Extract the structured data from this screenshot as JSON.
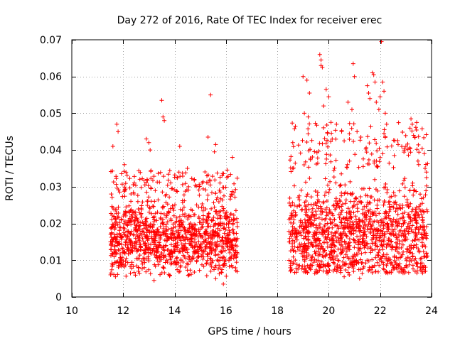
{
  "chart_data": {
    "type": "scatter",
    "title": "Day 272 of 2016, Rate Of TEC Index for receiver erec",
    "xlabel": "GPS time / hours",
    "ylabel": "ROTI / TECUs",
    "xlim": [
      10,
      24
    ],
    "ylim": [
      0,
      0.07
    ],
    "xticks": [
      10,
      12,
      14,
      16,
      18,
      20,
      22,
      24
    ],
    "yticks": [
      0,
      0.01,
      0.02,
      0.03,
      0.04,
      0.05,
      0.06,
      0.07
    ],
    "xtick_labels": [
      "10",
      "12",
      "14",
      "16",
      "18",
      "20",
      "22",
      "24"
    ],
    "ytick_labels": [
      "0",
      "0.01",
      "0.02",
      "0.03",
      "0.04",
      "0.05",
      "0.06",
      "0.07"
    ],
    "grid": true,
    "marker": "+",
    "color": "#ff0000",
    "series": [
      {
        "name": "erec",
        "segments": [
          {
            "x_start": 11.5,
            "x_end": 16.45,
            "typical_min": 0.007,
            "typical_max": 0.027,
            "median": 0.016
          },
          {
            "x_start": 18.45,
            "x_end": 23.85,
            "typical_min": 0.008,
            "typical_max": 0.035,
            "median": 0.017
          }
        ],
        "outliers": [
          {
            "x": 11.75,
            "y": 0.047
          },
          {
            "x": 11.8,
            "y": 0.045
          },
          {
            "x": 11.6,
            "y": 0.041
          },
          {
            "x": 11.7,
            "y": 0.0055
          },
          {
            "x": 12.05,
            "y": 0.036
          },
          {
            "x": 12.9,
            "y": 0.043
          },
          {
            "x": 13.0,
            "y": 0.042
          },
          {
            "x": 13.05,
            "y": 0.04
          },
          {
            "x": 13.5,
            "y": 0.0535
          },
          {
            "x": 13.55,
            "y": 0.049
          },
          {
            "x": 13.6,
            "y": 0.048
          },
          {
            "x": 13.2,
            "y": 0.0045
          },
          {
            "x": 14.2,
            "y": 0.041
          },
          {
            "x": 14.5,
            "y": 0.035
          },
          {
            "x": 15.4,
            "y": 0.055
          },
          {
            "x": 15.3,
            "y": 0.0435
          },
          {
            "x": 15.6,
            "y": 0.0415
          },
          {
            "x": 15.55,
            "y": 0.0395
          },
          {
            "x": 15.85,
            "y": 0.033
          },
          {
            "x": 16.25,
            "y": 0.038
          },
          {
            "x": 15.9,
            "y": 0.0035
          },
          {
            "x": 15.6,
            "y": 0.005
          },
          {
            "x": 18.6,
            "y": 0.035
          },
          {
            "x": 18.55,
            "y": 0.0075
          },
          {
            "x": 19.0,
            "y": 0.06
          },
          {
            "x": 19.15,
            "y": 0.059
          },
          {
            "x": 19.25,
            "y": 0.0555
          },
          {
            "x": 19.05,
            "y": 0.05
          },
          {
            "x": 19.2,
            "y": 0.049
          },
          {
            "x": 19.65,
            "y": 0.066
          },
          {
            "x": 19.7,
            "y": 0.0645
          },
          {
            "x": 19.75,
            "y": 0.0625
          },
          {
            "x": 19.7,
            "y": 0.063
          },
          {
            "x": 19.8,
            "y": 0.052
          },
          {
            "x": 19.9,
            "y": 0.0565
          },
          {
            "x": 20.0,
            "y": 0.0545
          },
          {
            "x": 19.95,
            "y": 0.0445
          },
          {
            "x": 20.3,
            "y": 0.047
          },
          {
            "x": 20.5,
            "y": 0.045
          },
          {
            "x": 20.6,
            "y": 0.0425
          },
          {
            "x": 20.95,
            "y": 0.0635
          },
          {
            "x": 21.0,
            "y": 0.06
          },
          {
            "x": 20.9,
            "y": 0.051
          },
          {
            "x": 20.75,
            "y": 0.053
          },
          {
            "x": 21.1,
            "y": 0.045
          },
          {
            "x": 21.25,
            "y": 0.0435
          },
          {
            "x": 21.5,
            "y": 0.0575
          },
          {
            "x": 21.55,
            "y": 0.0555
          },
          {
            "x": 21.6,
            "y": 0.054
          },
          {
            "x": 21.7,
            "y": 0.061
          },
          {
            "x": 21.75,
            "y": 0.0605
          },
          {
            "x": 21.8,
            "y": 0.0585
          },
          {
            "x": 21.85,
            "y": 0.053
          },
          {
            "x": 21.95,
            "y": 0.051
          },
          {
            "x": 22.0,
            "y": 0.0545
          },
          {
            "x": 22.05,
            "y": 0.0695
          },
          {
            "x": 22.1,
            "y": 0.0585
          },
          {
            "x": 22.15,
            "y": 0.056
          },
          {
            "x": 22.2,
            "y": 0.05
          },
          {
            "x": 22.25,
            "y": 0.047
          },
          {
            "x": 22.15,
            "y": 0.0445
          },
          {
            "x": 22.55,
            "y": 0.0385
          },
          {
            "x": 22.7,
            "y": 0.0415
          },
          {
            "x": 23.0,
            "y": 0.041
          },
          {
            "x": 23.2,
            "y": 0.0485
          },
          {
            "x": 23.25,
            "y": 0.047
          },
          {
            "x": 23.3,
            "y": 0.044
          },
          {
            "x": 23.5,
            "y": 0.036
          },
          {
            "x": 23.75,
            "y": 0.035
          },
          {
            "x": 23.8,
            "y": 0.034
          },
          {
            "x": 20.8,
            "y": 0.006
          },
          {
            "x": 21.2,
            "y": 0.005
          },
          {
            "x": 22.3,
            "y": 0.0065
          },
          {
            "x": 23.7,
            "y": 0.0075
          },
          {
            "x": 19.3,
            "y": 0.0075
          },
          {
            "x": 20.6,
            "y": 0.0055
          }
        ]
      }
    ]
  }
}
